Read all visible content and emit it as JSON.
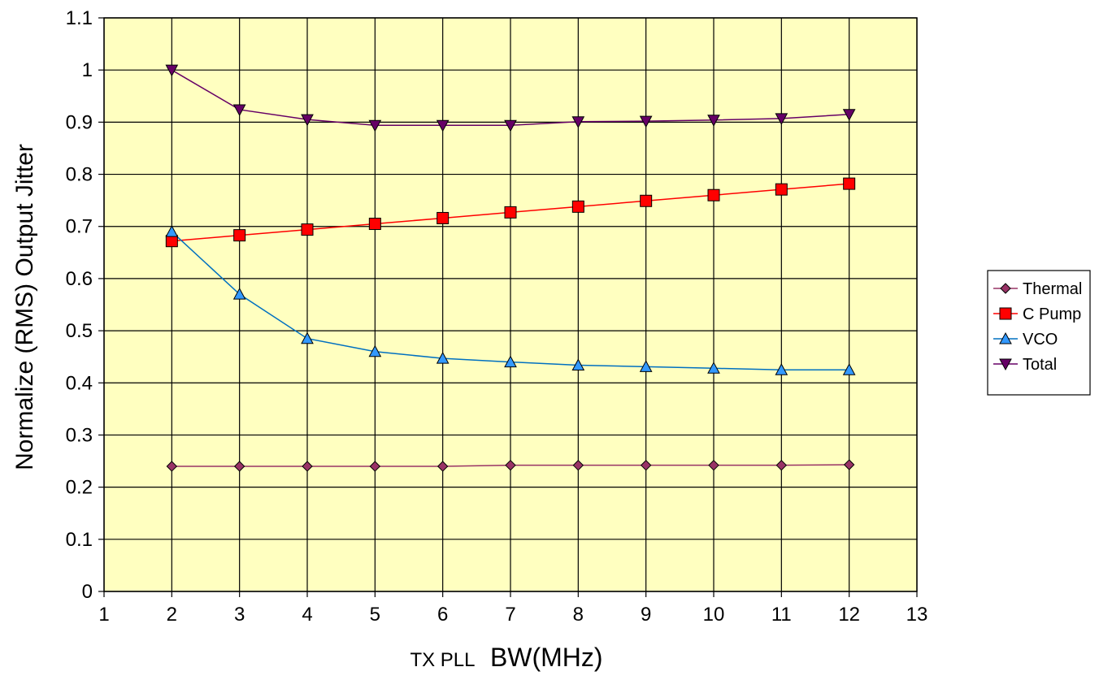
{
  "chart_data": {
    "type": "line",
    "title": "",
    "xlabel_prefix": "TX PLL",
    "xlabel_main": "BW(MHz)",
    "ylabel": "Normalize (RMS) Output Jitter",
    "xlim": [
      1,
      13
    ],
    "ylim": [
      0,
      1.1
    ],
    "x_ticks": [
      1,
      2,
      3,
      4,
      5,
      6,
      7,
      8,
      9,
      10,
      11,
      12,
      13
    ],
    "y_ticks": [
      0,
      0.1,
      0.2,
      0.3,
      0.4,
      0.5,
      0.6,
      0.7,
      0.8,
      0.9,
      1,
      1.1
    ],
    "x_tick_labels": [
      "1",
      "2",
      "3",
      "4",
      "5",
      "6",
      "7",
      "8",
      "9",
      "10",
      "11",
      "12",
      "13"
    ],
    "y_tick_labels": [
      "0",
      "0.1",
      "0.2",
      "0.3",
      "0.4",
      "0.5",
      "0.6",
      "0.7",
      "0.8",
      "0.9",
      "1",
      "1.1"
    ],
    "grid": true,
    "plot_background": "#ffffc0",
    "legend_position": "right",
    "x": [
      2,
      3,
      4,
      5,
      6,
      7,
      8,
      9,
      10,
      11,
      12
    ],
    "series": [
      {
        "name": "Thermal",
        "marker": "diamond",
        "line_color": "#993366",
        "marker_color": "#993366",
        "values": [
          0.24,
          0.24,
          0.24,
          0.24,
          0.24,
          0.242,
          0.242,
          0.242,
          0.242,
          0.242,
          0.243
        ]
      },
      {
        "name": "C Pump",
        "marker": "square",
        "line_color": "#ff0000",
        "marker_color": "#ff0000",
        "values": [
          0.672,
          0.683,
          0.694,
          0.705,
          0.716,
          0.727,
          0.738,
          0.749,
          0.76,
          0.771,
          0.782
        ]
      },
      {
        "name": "VCO",
        "marker": "triangle-up",
        "line_color": "#0070c0",
        "marker_color": "#3399ff",
        "values": [
          0.69,
          0.57,
          0.485,
          0.46,
          0.447,
          0.44,
          0.434,
          0.431,
          0.428,
          0.425,
          0.425
        ]
      },
      {
        "name": "Total",
        "marker": "triangle-down",
        "line_color": "#660066",
        "marker_color": "#660066",
        "values": [
          1.0,
          0.924,
          0.905,
          0.894,
          0.894,
          0.894,
          0.901,
          0.902,
          0.904,
          0.907,
          0.915
        ]
      }
    ]
  }
}
